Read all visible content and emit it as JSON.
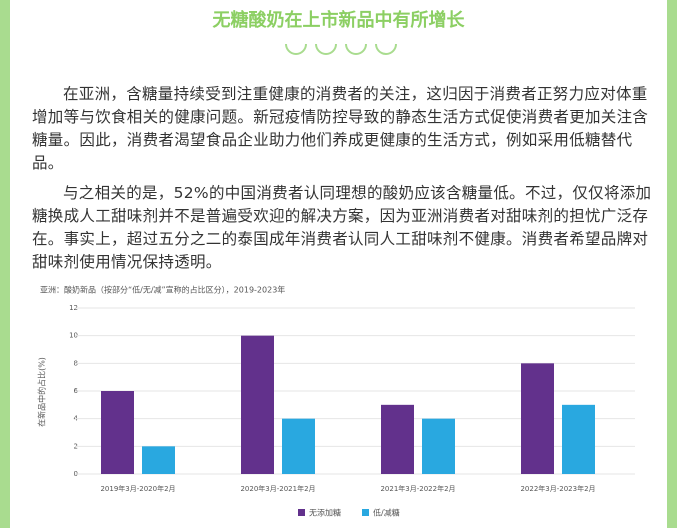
{
  "header": {
    "title": "无糖酸奶在上市新品中有所增长"
  },
  "paragraphs": [
    "在亚洲，含糖量持续受到注重健康的消费者的关注，这归因于消费者正努力应对体重增加等与饮食相关的健康问题。新冠疫情防控导致的静态生活方式促使消费者更加关注含糖量。因此，消费者渴望食品企业助力他们养成更健康的生活方式，例如采用低糖替代品。",
    "与之相关的是，52%的中国消费者认同理想的酸奶应该含糖量低。不过，仅仅将添加糖换成人工甜味剂并不是普遍受欢迎的解决方案，因为亚洲消费者对甜味剂的担忧广泛存在。事实上，超过五分之二的泰国成年消费者认同人工甜味剂不健康。消费者希望品牌对甜味剂使用情况保持透明。"
  ],
  "chart_data": {
    "type": "bar",
    "title": "亚洲：酸奶新品（按部分“低/无/减”宣称的占比区分），2019-2023年",
    "ylabel": "在新品中的占比(%)",
    "categories": [
      "2019年3月-2020年2月",
      "2020年3月-2021年2月",
      "2021年3月-2022年2月",
      "2022年3月-2023年2月"
    ],
    "series": [
      {
        "name": "无添加糖",
        "color": "#62318c",
        "values": [
          6,
          10,
          5,
          8
        ]
      },
      {
        "name": "低/减糖",
        "color": "#29a8e0",
        "values": [
          2,
          4,
          4,
          5
        ]
      }
    ],
    "ylim": [
      0,
      12
    ],
    "yticks": [
      0,
      2,
      4,
      6,
      8,
      10,
      12
    ],
    "grid": true,
    "legend": "bottom"
  }
}
